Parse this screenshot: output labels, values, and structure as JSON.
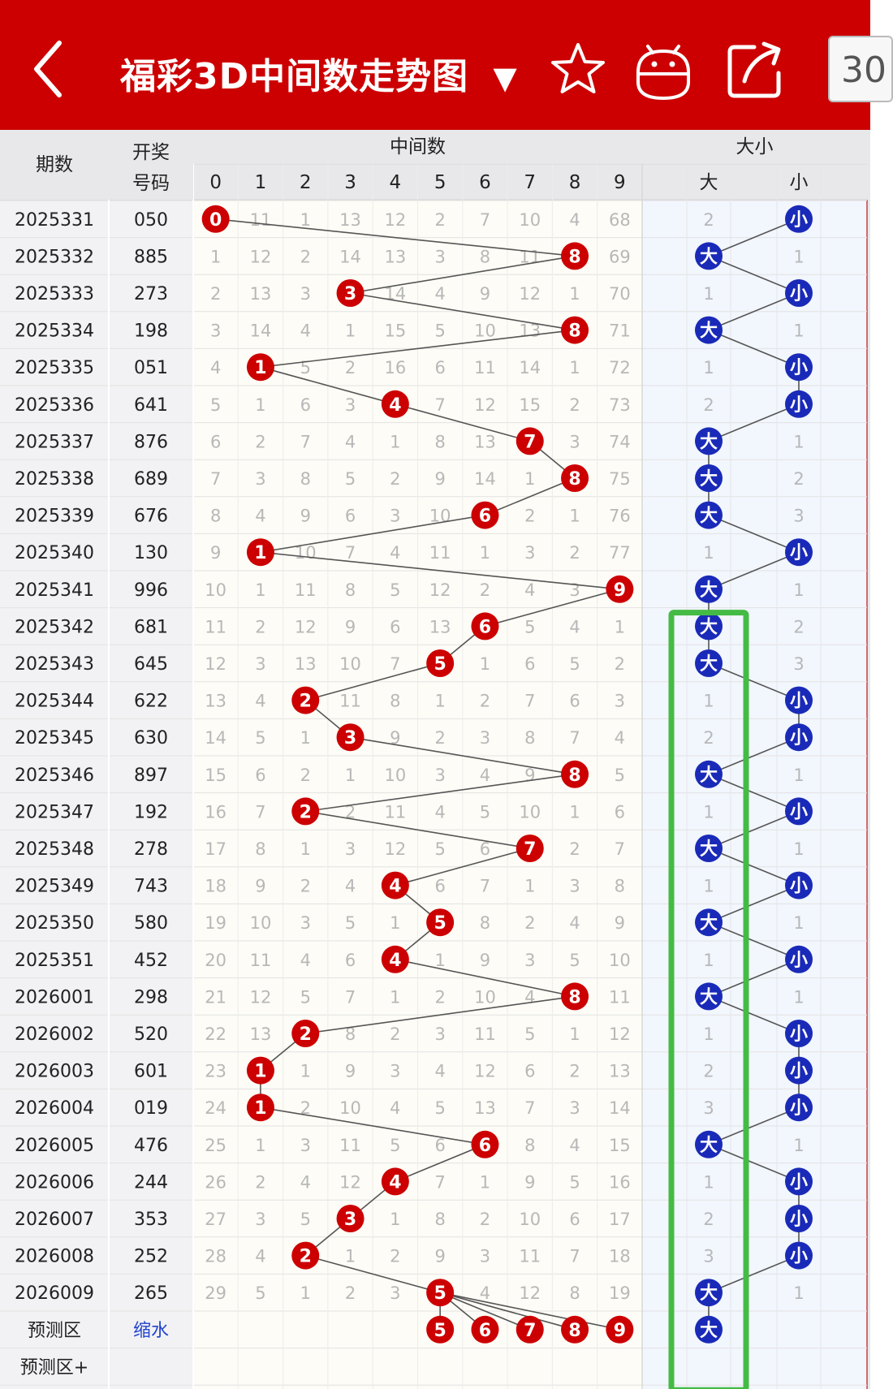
{
  "header": {
    "title": "福彩3D中间数走势图",
    "dropdown_glyph": "▼",
    "icons": [
      "back-arrow-icon",
      "star-icon",
      "robot-icon",
      "share-icon"
    ],
    "badge_text": "30"
  },
  "table": {
    "col_period": "期数",
    "col_draw": "开奖号码",
    "col_draw_line1": "开奖",
    "col_draw_line2": "号码",
    "group_mid": "中间数",
    "group_size": "大小",
    "digits": [
      "0",
      "1",
      "2",
      "3",
      "4",
      "5",
      "6",
      "7",
      "8",
      "9"
    ],
    "size_big": "大",
    "size_small": "小",
    "rows": [
      {
        "period": "2025331",
        "draw": "050",
        "mid": [
          null,
          11,
          1,
          13,
          12,
          2,
          7,
          10,
          4,
          68
        ],
        "big": 2,
        "small": null
      },
      {
        "period": "2025332",
        "draw": "885",
        "mid": [
          1,
          12,
          2,
          14,
          13,
          3,
          8,
          11,
          null,
          69
        ],
        "big": null,
        "small": 1
      },
      {
        "period": "2025333",
        "draw": "273",
        "mid": [
          2,
          13,
          3,
          null,
          14,
          4,
          9,
          12,
          1,
          70
        ],
        "big": 1,
        "small": null
      },
      {
        "period": "2025334",
        "draw": "198",
        "mid": [
          3,
          14,
          4,
          1,
          15,
          5,
          10,
          13,
          null,
          71
        ],
        "big": null,
        "small": 1
      },
      {
        "period": "2025335",
        "draw": "051",
        "mid": [
          4,
          null,
          5,
          2,
          16,
          6,
          11,
          14,
          1,
          72
        ],
        "big": 1,
        "small": null
      },
      {
        "period": "2025336",
        "draw": "641",
        "mid": [
          5,
          1,
          6,
          3,
          null,
          7,
          12,
          15,
          2,
          73
        ],
        "big": 2,
        "small": null
      },
      {
        "period": "2025337",
        "draw": "876",
        "mid": [
          6,
          2,
          7,
          4,
          1,
          8,
          13,
          null,
          3,
          74
        ],
        "big": null,
        "small": 1
      },
      {
        "period": "2025338",
        "draw": "689",
        "mid": [
          7,
          3,
          8,
          5,
          2,
          9,
          14,
          1,
          null,
          75
        ],
        "big": null,
        "small": 2
      },
      {
        "period": "2025339",
        "draw": "676",
        "mid": [
          8,
          4,
          9,
          6,
          3,
          10,
          null,
          2,
          1,
          76
        ],
        "big": null,
        "small": 3
      },
      {
        "period": "2025340",
        "draw": "130",
        "mid": [
          9,
          null,
          10,
          7,
          4,
          11,
          1,
          3,
          2,
          77
        ],
        "big": 1,
        "small": null
      },
      {
        "period": "2025341",
        "draw": "996",
        "mid": [
          10,
          1,
          11,
          8,
          5,
          12,
          2,
          4,
          3,
          null
        ],
        "big": null,
        "small": 1
      },
      {
        "period": "2025342",
        "draw": "681",
        "mid": [
          11,
          2,
          12,
          9,
          6,
          13,
          null,
          5,
          4,
          1
        ],
        "big": null,
        "small": 2
      },
      {
        "period": "2025343",
        "draw": "645",
        "mid": [
          12,
          3,
          13,
          10,
          7,
          null,
          1,
          6,
          5,
          2
        ],
        "big": null,
        "small": 3
      },
      {
        "period": "2025344",
        "draw": "622",
        "mid": [
          13,
          4,
          null,
          11,
          8,
          1,
          2,
          7,
          6,
          3
        ],
        "big": 1,
        "small": null
      },
      {
        "period": "2025345",
        "draw": "630",
        "mid": [
          14,
          5,
          1,
          null,
          9,
          2,
          3,
          8,
          7,
          4
        ],
        "big": 2,
        "small": null
      },
      {
        "period": "2025346",
        "draw": "897",
        "mid": [
          15,
          6,
          2,
          1,
          10,
          3,
          4,
          9,
          null,
          5
        ],
        "big": null,
        "small": 1
      },
      {
        "period": "2025347",
        "draw": "192",
        "mid": [
          16,
          7,
          null,
          2,
          11,
          4,
          5,
          10,
          1,
          6
        ],
        "big": 1,
        "small": null
      },
      {
        "period": "2025348",
        "draw": "278",
        "mid": [
          17,
          8,
          1,
          3,
          12,
          5,
          6,
          null,
          2,
          7
        ],
        "big": null,
        "small": 1
      },
      {
        "period": "2025349",
        "draw": "743",
        "mid": [
          18,
          9,
          2,
          4,
          null,
          6,
          7,
          1,
          3,
          8
        ],
        "big": 1,
        "small": null
      },
      {
        "period": "2025350",
        "draw": "580",
        "mid": [
          19,
          10,
          3,
          5,
          1,
          null,
          8,
          2,
          4,
          9
        ],
        "big": null,
        "small": 1
      },
      {
        "period": "2025351",
        "draw": "452",
        "mid": [
          20,
          11,
          4,
          6,
          null,
          1,
          9,
          3,
          5,
          10
        ],
        "big": 1,
        "small": null
      },
      {
        "period": "2026001",
        "draw": "298",
        "mid": [
          21,
          12,
          5,
          7,
          1,
          2,
          10,
          4,
          null,
          11
        ],
        "big": null,
        "small": 1
      },
      {
        "period": "2026002",
        "draw": "520",
        "mid": [
          22,
          13,
          null,
          8,
          2,
          3,
          11,
          5,
          1,
          12
        ],
        "big": 1,
        "small": null
      },
      {
        "period": "2026003",
        "draw": "601",
        "mid": [
          23,
          null,
          1,
          9,
          3,
          4,
          12,
          6,
          2,
          13
        ],
        "big": 2,
        "small": null
      },
      {
        "period": "2026004",
        "draw": "019",
        "mid": [
          24,
          null,
          2,
          10,
          4,
          5,
          13,
          7,
          3,
          14
        ],
        "big": 3,
        "small": null
      },
      {
        "period": "2026005",
        "draw": "476",
        "mid": [
          25,
          1,
          3,
          11,
          5,
          6,
          null,
          8,
          4,
          15
        ],
        "big": null,
        "small": 1
      },
      {
        "period": "2026006",
        "draw": "244",
        "mid": [
          26,
          2,
          4,
          12,
          null,
          7,
          1,
          9,
          5,
          16
        ],
        "big": 1,
        "small": null
      },
      {
        "period": "2026007",
        "draw": "353",
        "mid": [
          27,
          3,
          5,
          null,
          1,
          8,
          2,
          10,
          6,
          17
        ],
        "big": 2,
        "small": null
      },
      {
        "period": "2026008",
        "draw": "252",
        "mid": [
          28,
          4,
          null,
          1,
          2,
          9,
          3,
          11,
          7,
          18
        ],
        "big": 3,
        "small": null
      },
      {
        "period": "2026009",
        "draw": "265",
        "mid": [
          29,
          5,
          1,
          2,
          3,
          null,
          4,
          12,
          8,
          19
        ],
        "big": null,
        "small": 1
      }
    ],
    "hits": [
      0,
      8,
      3,
      8,
      1,
      4,
      7,
      8,
      6,
      1,
      9,
      6,
      5,
      2,
      3,
      8,
      2,
      7,
      4,
      5,
      4,
      8,
      2,
      1,
      1,
      6,
      4,
      3,
      2,
      5
    ],
    "predict_label": "预测区",
    "predict_action": "缩水",
    "predict_digits": [
      5,
      6,
      7,
      8,
      9
    ],
    "predict_size": "大",
    "predict_plus_label": "预测区+"
  },
  "colors": {
    "header_red": "#cc0000",
    "ball_red": "#cc0000",
    "ball_blue": "#1a2ab8",
    "highlight_green": "#44bb44",
    "link_blue": "#2244cc",
    "omit_gray": "#b8b8b8"
  }
}
